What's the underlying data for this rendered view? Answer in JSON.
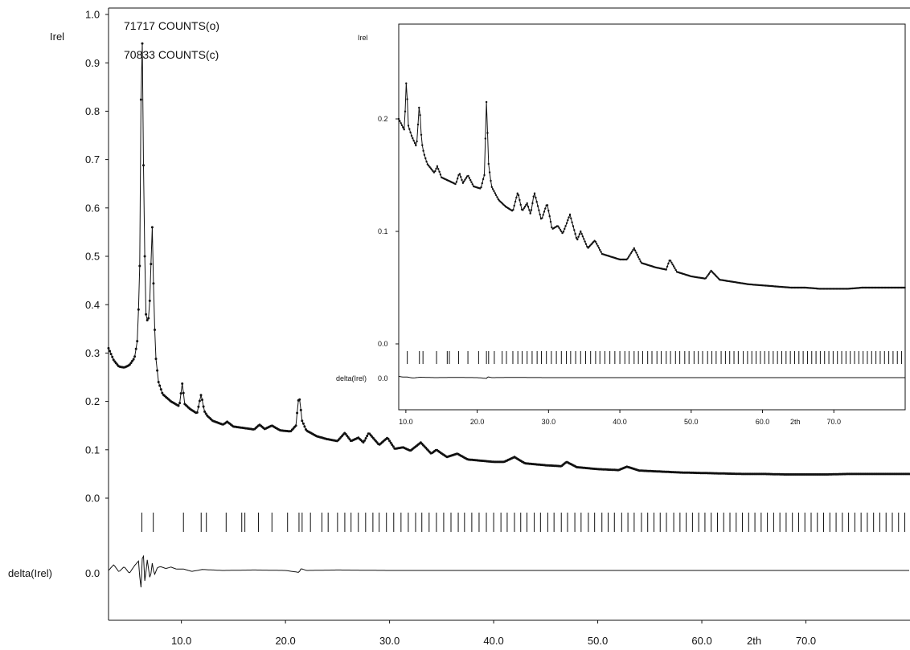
{
  "chart_data": [
    {
      "id": "main",
      "type": "line",
      "title": "",
      "ylabel": "Irel",
      "xlabel": "2th",
      "delta_label": "delta(Irel)",
      "annotations": [
        "71717 COUNTS(o)",
        "70833 COUNTS(c)"
      ],
      "xlim": [
        3.0,
        80.0
      ],
      "ylim": [
        0.0,
        1.0
      ],
      "x_ticks": [
        "10.0",
        "20.0",
        "30.0",
        "40.0",
        "50.0",
        "60.0",
        "70.0"
      ],
      "y_ticks": [
        "0.0",
        "0.1",
        "0.2",
        "0.3",
        "0.4",
        "0.5",
        "0.6",
        "0.7",
        "0.8",
        "0.9",
        "1.0"
      ],
      "delta_tick": "0.0",
      "grid": false,
      "observed_calculated": {
        "x": [
          3.0,
          3.5,
          4.0,
          4.5,
          5.0,
          5.5,
          5.8,
          6.0,
          6.1,
          6.2,
          6.3,
          6.4,
          6.6,
          6.8,
          7.0,
          7.1,
          7.2,
          7.3,
          7.5,
          7.8,
          8.2,
          9.0,
          9.8,
          10.1,
          10.3,
          10.8,
          11.5,
          11.9,
          12.2,
          12.5,
          13.0,
          14.0,
          14.4,
          15.0,
          16.0,
          17.0,
          17.5,
          18.0,
          18.7,
          19.5,
          20.5,
          21.0,
          21.3,
          21.6,
          22.0,
          23.0,
          24.0,
          25.0,
          25.7,
          26.3,
          27.0,
          27.5,
          28.0,
          29.0,
          29.8,
          30.5,
          31.3,
          32.0,
          33.0,
          34.0,
          34.5,
          35.5,
          36.5,
          37.5,
          38.5,
          40.0,
          41.0,
          42.0,
          43.0,
          45.0,
          46.5,
          47.0,
          48.0,
          50.0,
          52.0,
          52.8,
          54.0,
          56.0,
          58.0,
          60.0,
          62.0,
          64.0,
          66.0,
          68.0,
          70.0,
          72.0,
          74.0,
          76.0,
          78.0,
          80.0
        ],
        "y": [
          0.31,
          0.285,
          0.272,
          0.27,
          0.275,
          0.29,
          0.33,
          0.48,
          0.78,
          1.0,
          0.85,
          0.58,
          0.38,
          0.36,
          0.42,
          0.5,
          0.56,
          0.46,
          0.3,
          0.24,
          0.215,
          0.2,
          0.19,
          0.24,
          0.195,
          0.185,
          0.175,
          0.215,
          0.18,
          0.17,
          0.16,
          0.152,
          0.158,
          0.148,
          0.145,
          0.142,
          0.152,
          0.143,
          0.15,
          0.14,
          0.138,
          0.15,
          0.215,
          0.16,
          0.14,
          0.128,
          0.122,
          0.118,
          0.135,
          0.118,
          0.125,
          0.115,
          0.135,
          0.11,
          0.125,
          0.102,
          0.105,
          0.098,
          0.115,
          0.092,
          0.1,
          0.085,
          0.092,
          0.08,
          0.078,
          0.075,
          0.075,
          0.085,
          0.072,
          0.068,
          0.066,
          0.075,
          0.064,
          0.06,
          0.058,
          0.065,
          0.057,
          0.055,
          0.053,
          0.052,
          0.051,
          0.05,
          0.05,
          0.049,
          0.049,
          0.049,
          0.05,
          0.05,
          0.05,
          0.05
        ]
      },
      "reflection_positions": [
        6.2,
        7.3,
        10.2,
        11.9,
        12.4,
        14.3,
        15.8,
        16.1,
        17.4,
        18.7,
        20.2,
        21.3,
        21.6,
        22.4,
        23.5,
        24.1,
        25.0,
        25.7,
        26.3,
        27.0,
        27.7,
        28.4,
        29.0,
        29.7,
        30.4,
        31.1,
        31.8,
        32.5,
        33.1,
        33.8,
        34.5,
        35.2,
        35.9,
        36.6,
        37.2,
        37.9,
        38.6,
        39.3,
        40.0,
        40.7,
        41.3,
        42.0,
        42.6,
        43.2,
        43.9,
        44.5,
        45.2,
        45.8,
        46.5,
        47.1,
        47.8,
        48.4,
        49.1,
        49.7,
        50.4,
        51.0,
        51.6,
        52.3,
        52.9,
        53.5,
        54.2,
        54.8,
        55.4,
        56.0,
        56.6,
        57.3,
        57.9,
        58.5,
        59.1,
        59.7,
        60.3,
        60.9,
        61.5,
        62.1,
        62.7,
        63.3,
        63.9,
        64.5,
        65.1,
        65.7,
        66.3,
        66.9,
        67.5,
        68.1,
        68.7,
        69.3,
        69.9,
        70.5,
        71.1,
        71.7,
        72.3,
        72.9,
        73.5,
        74.1,
        74.7,
        75.3,
        75.9,
        76.5,
        77.1,
        77.7,
        78.3,
        78.9,
        79.5
      ],
      "difference": {
        "x": [
          3.0,
          3.5,
          4.0,
          4.5,
          5.0,
          5.5,
          5.9,
          6.1,
          6.3,
          6.5,
          6.7,
          7.0,
          7.2,
          7.4,
          7.7,
          8.0,
          8.5,
          9.0,
          9.5,
          10.2,
          11.0,
          12.0,
          14.0,
          17.0,
          20.0,
          21.3,
          21.5,
          22.0,
          25.0,
          30.0,
          35.0,
          40.0,
          50.0,
          60.0,
          70.0,
          80.0
        ],
        "y": [
          0.0,
          0.012,
          -0.003,
          0.008,
          -0.006,
          0.01,
          0.02,
          -0.045,
          0.055,
          -0.03,
          0.025,
          -0.02,
          0.015,
          -0.01,
          0.006,
          0.008,
          0.004,
          0.007,
          0.003,
          0.003,
          -0.002,
          0.002,
          0.0,
          0.001,
          0.0,
          -0.004,
          0.004,
          0.0,
          0.001,
          0.0,
          0.0,
          0.0,
          0.0,
          0.0,
          0.0,
          0.0
        ]
      }
    },
    {
      "id": "inset",
      "type": "line",
      "title": "",
      "ylabel": "Irel",
      "xlabel": "2th",
      "delta_label": "delta(Irel)",
      "xlim": [
        9.0,
        80.0
      ],
      "ylim": [
        0.0,
        0.28
      ],
      "x_ticks": [
        "10.0",
        "20.0",
        "30.0",
        "40.0",
        "50.0",
        "60.0",
        "70.0"
      ],
      "y_ticks": [
        "0.0",
        "0.1",
        "0.2"
      ],
      "delta_tick": "0.0",
      "grid": false
    }
  ]
}
